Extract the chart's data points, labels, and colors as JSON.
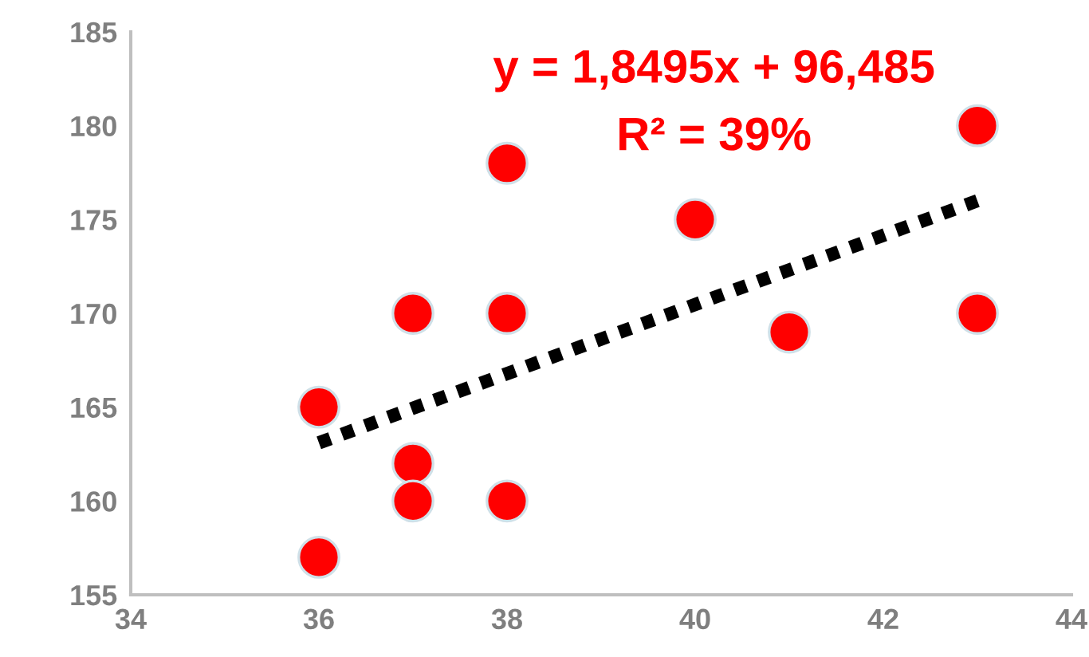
{
  "chart_data": {
    "type": "scatter",
    "series": [
      {
        "color": "#ff0000",
        "x": [
          36,
          36,
          37,
          37,
          37,
          38,
          38,
          38,
          40,
          41,
          43,
          43
        ],
        "values": [
          165,
          157,
          170,
          162,
          160,
          178,
          170,
          160,
          175,
          169,
          180,
          170
        ],
        "marker": "circle"
      },
      {
        "type": "line",
        "color": "#000000",
        "x": [
          36,
          43
        ],
        "values": [
          163.1,
          176.0
        ],
        "line_style": "dotted",
        "marker": "none"
      }
    ],
    "xlim": [
      34,
      44
    ],
    "ylim": [
      155,
      185
    ],
    "xticks": [
      34,
      36,
      38,
      40,
      42,
      44
    ],
    "yticks": [
      155,
      160,
      165,
      170,
      175,
      180,
      185
    ],
    "annotations": [
      "y = 1,8495x + 96,485",
      "R² = 39%"
    ],
    "grid": false,
    "legend": false
  }
}
